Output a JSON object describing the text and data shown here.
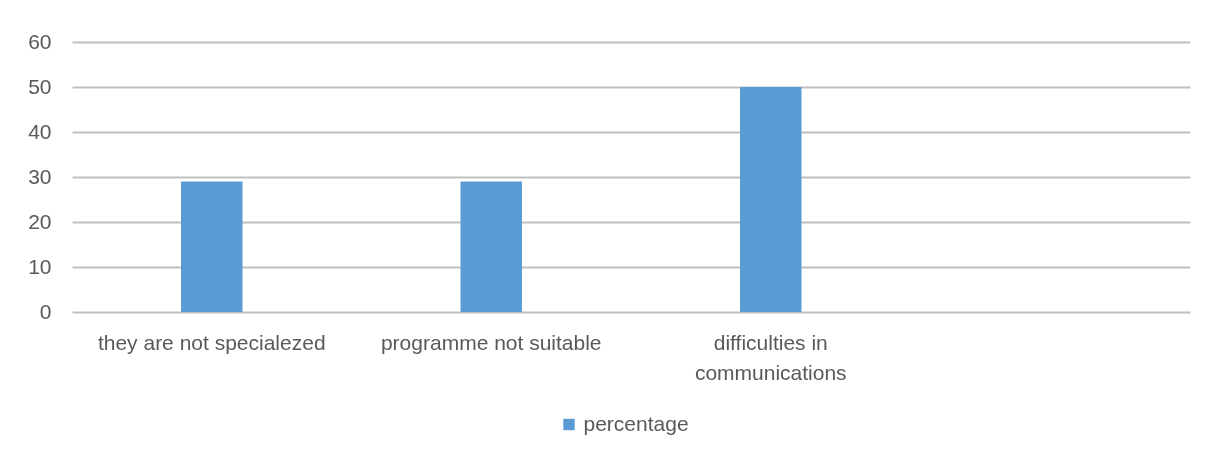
{
  "chart_data": {
    "type": "bar",
    "categories": [
      "they are not specialezed",
      "programme not suitable",
      "difficulties in communications",
      null
    ],
    "series": [
      {
        "name": "percentage",
        "color": "#5b9bd5",
        "values": [
          29,
          29,
          50,
          null
        ]
      }
    ],
    "ylim": [
      0,
      60
    ],
    "yticks": [
      0,
      10,
      20,
      30,
      40,
      50,
      60
    ],
    "grid": "y",
    "legend": "bottom"
  }
}
